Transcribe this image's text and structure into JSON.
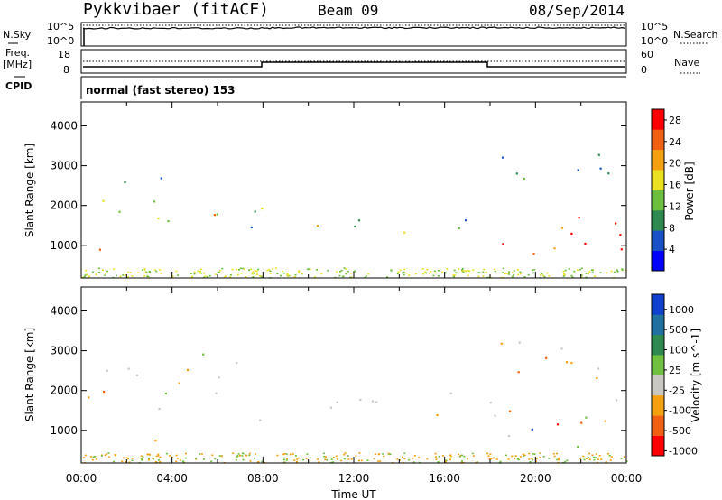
{
  "header": {
    "station": "Pykkvibaer (fitACF)",
    "beam": "Beam 09",
    "date": "08/Sep/2014"
  },
  "summary_panels": {
    "nsky_label": "N.Sky",
    "nsky_ticks": [
      "10^5",
      "10^0"
    ],
    "nsky_right_ticks": [
      "10^5",
      "10^0"
    ],
    "nsearch_label": "N.Search",
    "freq_label": "Freq.",
    "freq_unit": "[MHz]",
    "freq_ticks": [
      "18",
      "8"
    ],
    "nave_ticks": [
      "60",
      "0"
    ],
    "nave_label": "Nave",
    "cpid_label": "CPID",
    "cpid_text": "normal (fast stereo) 153"
  },
  "chart_data": [
    {
      "type": "heatmap",
      "title": "",
      "xlabel": "Time UT",
      "ylabel": "Slant Range [km]",
      "x_ticks": [
        "00:00",
        "04:00",
        "08:00",
        "12:00",
        "16:00",
        "20:00",
        "00:00"
      ],
      "y_ticks": [
        "1000",
        "2000",
        "3000",
        "4000"
      ],
      "xlim": [
        0,
        24
      ],
      "ylim": [
        180,
        4600
      ],
      "colorbar": {
        "label": "Power [dB]",
        "ticks": [
          "4",
          "8",
          "12",
          "16",
          "20",
          "24",
          "28"
        ],
        "range": [
          0,
          30
        ],
        "colors": [
          "#0000ff",
          "#1850c8",
          "#2e8a50",
          "#6cbf3c",
          "#e8e020",
          "#f5a010",
          "#f06010",
          "#ff0000"
        ]
      },
      "scatter_bands": [
        {
          "t0": 0.0,
          "t1": 1.2,
          "r0": 700,
          "r1": 1400,
          "level": "high"
        },
        {
          "t0": 1.2,
          "t1": 3.8,
          "r0": 850,
          "r1": 2000,
          "level": "mid"
        },
        {
          "t0": 0.0,
          "t1": 4.0,
          "r0": 1950,
          "r1": 2850,
          "level": "mixed"
        },
        {
          "t0": 5.0,
          "t1": 8.0,
          "r0": 1200,
          "r1": 2800,
          "level": "mixed"
        },
        {
          "t0": 8.0,
          "t1": 18.5,
          "r0": 1300,
          "r1": 1800,
          "level": "mixed"
        },
        {
          "t0": 18.5,
          "t1": 24.0,
          "r0": 600,
          "r1": 2200,
          "level": "high"
        },
        {
          "t0": 18.0,
          "t1": 24.0,
          "r0": 2200,
          "r1": 3300,
          "level": "low"
        }
      ]
    },
    {
      "type": "heatmap",
      "title": "",
      "xlabel": "Time UT",
      "ylabel": "Slant Range [km]",
      "x_ticks": [
        "00:00",
        "04:00",
        "08:00",
        "12:00",
        "16:00",
        "20:00",
        "00:00"
      ],
      "y_ticks": [
        "1000",
        "2000",
        "3000",
        "4000"
      ],
      "xlim": [
        0,
        24
      ],
      "ylim": [
        180,
        4600
      ],
      "colorbar": {
        "label": "Velocity [m s^-1]",
        "ticks": [
          "1000",
          "500",
          "100",
          "25",
          "-25",
          "-100",
          "-500",
          "-1000"
        ],
        "colors": [
          "#1040d0",
          "#2070a0",
          "#2e8a50",
          "#70c040",
          "#c8c8c0",
          "#f5a010",
          "#f06010",
          "#ff0000"
        ]
      },
      "scatter_bands": [
        {
          "t0": 0.0,
          "t1": 3.8,
          "r0": 750,
          "r1": 2000,
          "level": "mixed"
        },
        {
          "t0": 0.0,
          "t1": 7.5,
          "r0": 1900,
          "r1": 3000,
          "level": "grey"
        },
        {
          "t0": 6.5,
          "t1": 18.5,
          "r0": 1250,
          "r1": 2000,
          "level": "grey"
        },
        {
          "t0": 18.5,
          "t1": 24.0,
          "r0": 600,
          "r1": 2000,
          "level": "mixed"
        },
        {
          "t0": 18.0,
          "t1": 24.0,
          "r0": 2000,
          "r1": 3300,
          "level": "orange"
        }
      ]
    }
  ]
}
